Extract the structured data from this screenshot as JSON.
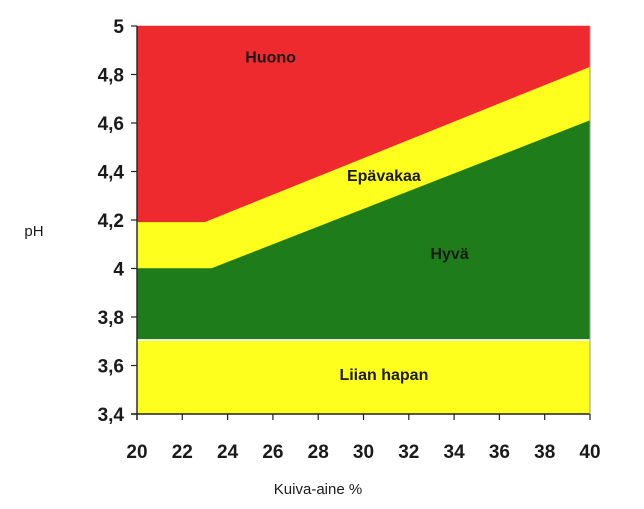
{
  "chart_data": {
    "type": "area",
    "title": "",
    "xlabel": "Kuiva-aine %",
    "ylabel": "pH",
    "xlim": [
      20,
      40
    ],
    "ylim": [
      3.4,
      5
    ],
    "x_ticks": [
      "20",
      "22",
      "24",
      "26",
      "28",
      "30",
      "32",
      "34",
      "36",
      "38",
      "40"
    ],
    "y_ticks": [
      "3,4",
      "3,6",
      "3,8",
      "4",
      "4,2",
      "4,4",
      "4,6",
      "4,8",
      "5"
    ],
    "grid": false,
    "legend": "none",
    "zones": [
      {
        "name": "Huono",
        "color": "#ee2a2f",
        "label_at": {
          "x": 25.9,
          "y": 4.85
        },
        "polygon": [
          [
            20,
            5
          ],
          [
            40,
            5
          ],
          [
            40,
            4.83
          ],
          [
            23,
            4.19
          ],
          [
            20,
            4.19
          ]
        ]
      },
      {
        "name": "Epävakaa",
        "color": "#ffff1e",
        "label_at": {
          "x": 30.9,
          "y": 4.36
        },
        "polygon": [
          [
            20,
            4.19
          ],
          [
            23,
            4.19
          ],
          [
            40,
            4.83
          ],
          [
            40,
            4.61
          ],
          [
            23.3,
            4.0
          ],
          [
            20,
            4.0
          ]
        ]
      },
      {
        "name": "Hyvä",
        "color": "#1e7d1a",
        "label_at": {
          "x": 33.8,
          "y": 4.04
        },
        "polygon": [
          [
            20,
            4.0
          ],
          [
            23.3,
            4.0
          ],
          [
            40,
            4.61
          ],
          [
            40,
            3.71
          ],
          [
            20,
            3.71
          ]
        ]
      },
      {
        "name": "Liian hapan",
        "color": "#ffff1e",
        "label_at": {
          "x": 30.9,
          "y": 3.54
        },
        "polygon": [
          [
            20,
            3.7
          ],
          [
            40,
            3.7
          ],
          [
            40,
            3.4
          ],
          [
            20,
            3.4
          ]
        ]
      }
    ]
  }
}
